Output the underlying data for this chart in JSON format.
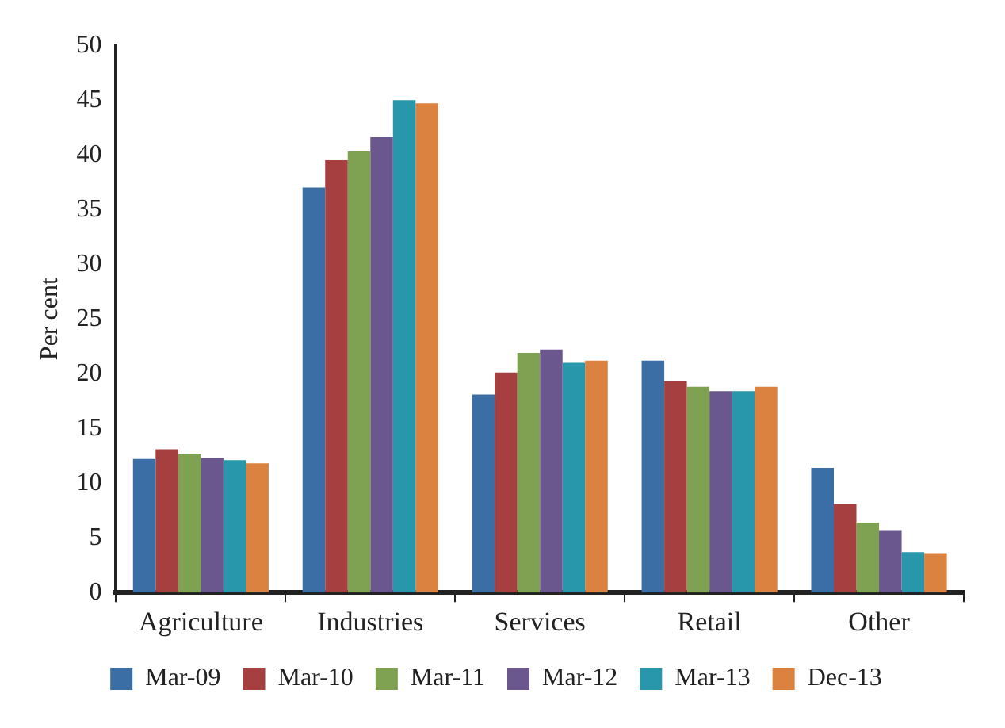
{
  "chart_data": {
    "type": "bar",
    "ylabel": "Per cent",
    "categories": [
      "Agriculture",
      "Industries",
      "Services",
      "Retail",
      "Other"
    ],
    "series": [
      {
        "name": "Mar-09",
        "color": "#3a6ea5",
        "values": [
          12.2,
          37,
          18.1,
          21.2,
          11.4
        ]
      },
      {
        "name": "Mar-10",
        "color": "#a64040",
        "values": [
          13.1,
          39.5,
          20.1,
          19.3,
          8.1
        ]
      },
      {
        "name": "Mar-11",
        "color": "#7ea152",
        "values": [
          12.7,
          40.3,
          21.9,
          18.8,
          6.4
        ]
      },
      {
        "name": "Mar-12",
        "color": "#6a578d",
        "values": [
          12.3,
          41.6,
          22.2,
          18.4,
          5.7
        ]
      },
      {
        "name": "Mar-13",
        "color": "#2896ab",
        "values": [
          12.1,
          45,
          21,
          18.4,
          3.7
        ]
      },
      {
        "name": "Dec-13",
        "color": "#db8240",
        "values": [
          11.8,
          44.7,
          21.2,
          18.8,
          3.6
        ]
      }
    ],
    "ylim": [
      0,
      50
    ],
    "yticks": [
      0,
      5,
      10,
      15,
      20,
      25,
      30,
      35,
      40,
      45,
      50
    ],
    "grid": false,
    "legend": "bottom"
  }
}
